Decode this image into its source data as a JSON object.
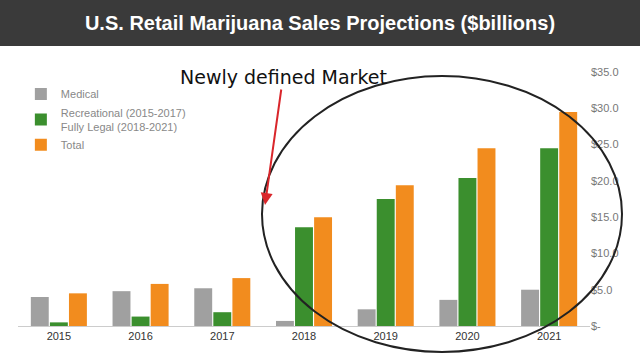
{
  "chart_data": {
    "type": "bar",
    "title": "U.S. Retail Marijuana Sales Projections ($billions)",
    "categories": [
      "2015",
      "2016",
      "2017",
      "2018",
      "2019",
      "2020",
      "2021"
    ],
    "series": [
      {
        "name": "Medical",
        "color": "#a0a0a0",
        "values": [
          4.0,
          4.8,
          5.2,
          0.7,
          2.3,
          3.6,
          5.0
        ]
      },
      {
        "name": "Recreational (2015-2017)\nFully Legal (2018-2021)",
        "color": "#3b8f2e",
        "values": [
          0.5,
          1.3,
          1.9,
          13.6,
          17.5,
          20.4,
          24.5
        ]
      },
      {
        "name": "Total",
        "color": "#f28c1e",
        "values": [
          4.5,
          5.8,
          6.6,
          15.0,
          19.4,
          24.5,
          29.5
        ]
      }
    ],
    "ylim": [
      0,
      35
    ],
    "yticks": [
      {
        "value": 0,
        "label": "$-"
      },
      {
        "value": 5,
        "label": "$5.0"
      },
      {
        "value": 10,
        "label": "$10.0"
      },
      {
        "value": 15,
        "label": "$15.0"
      },
      {
        "value": 20,
        "label": "$20.0"
      },
      {
        "value": 25,
        "label": "$25.0"
      },
      {
        "value": 30,
        "label": "$30.0"
      },
      {
        "value": 35,
        "label": "$35.0"
      }
    ],
    "grid": false,
    "legend": "upper left",
    "data_labels": false,
    "annotations": [
      {
        "text": "Newly defined Market"
      }
    ]
  }
}
